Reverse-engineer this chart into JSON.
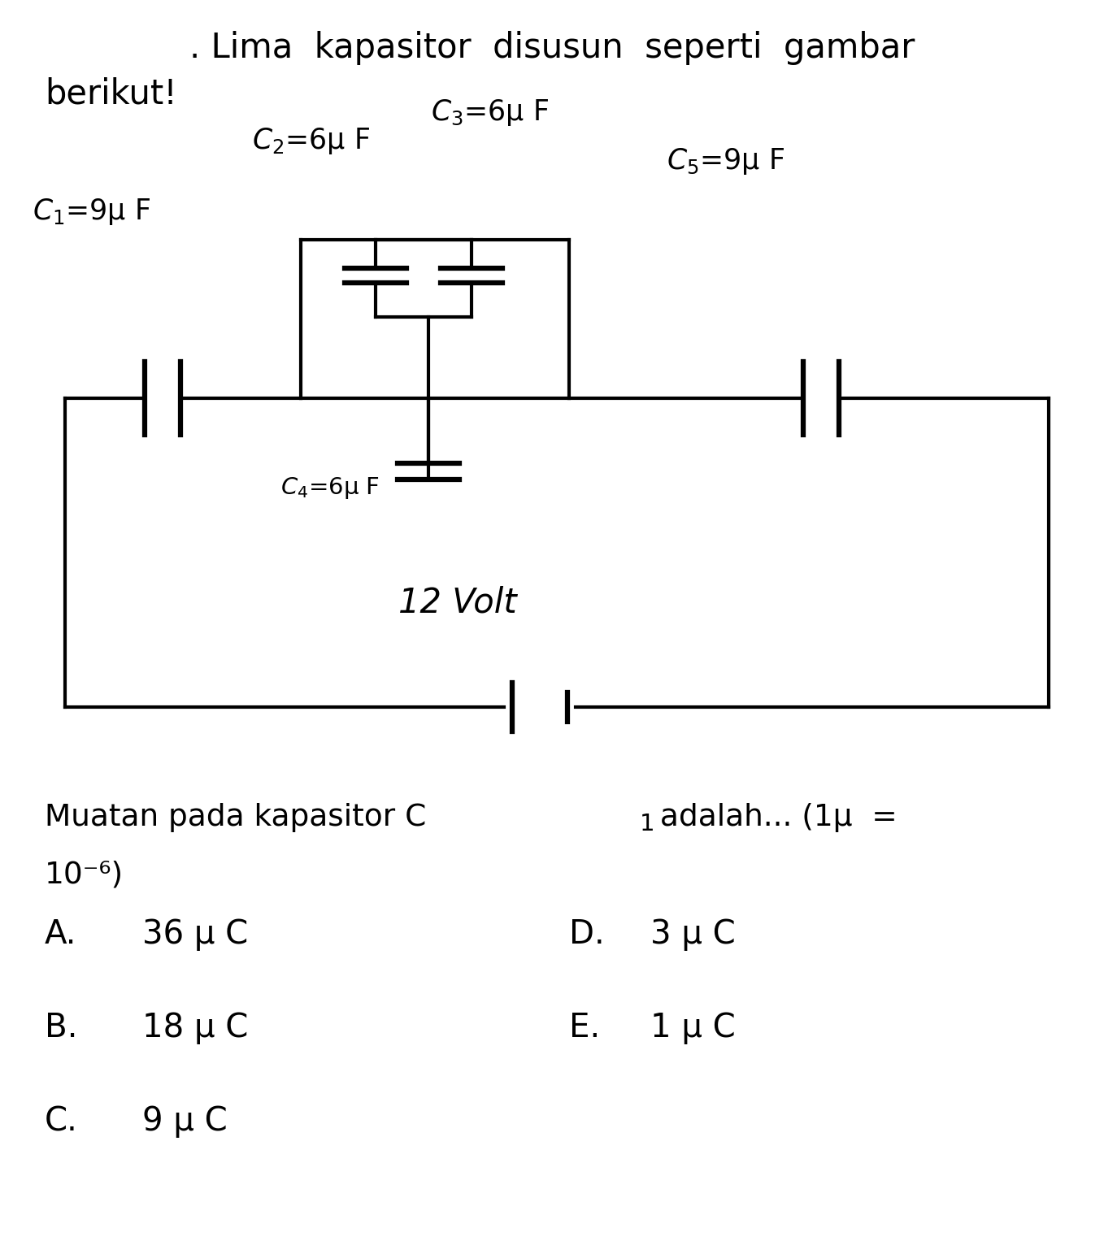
{
  "title_line1": ". Lima  kapasitor  disusun  seperti  gambar",
  "title_line2": "berikut!",
  "c1_val": "=9μ F",
  "c2_val": "=6μ F",
  "c3_val": "=6μ F",
  "c4_val": "=6μ F",
  "c5_val": "=9μ F",
  "voltage_label": "12 Volt",
  "question_line1": "Muatan pada kapasitor C",
  "question_sub1": "1",
  "question_line1b": " adalah... (1μ  =",
  "question_line2": "10⁻⁶)",
  "bg_color": "#ffffff",
  "line_color": "#000000",
  "text_color": "#000000",
  "font_size_title": 30,
  "font_size_label": 25,
  "font_size_question": 27,
  "font_size_answer": 29
}
